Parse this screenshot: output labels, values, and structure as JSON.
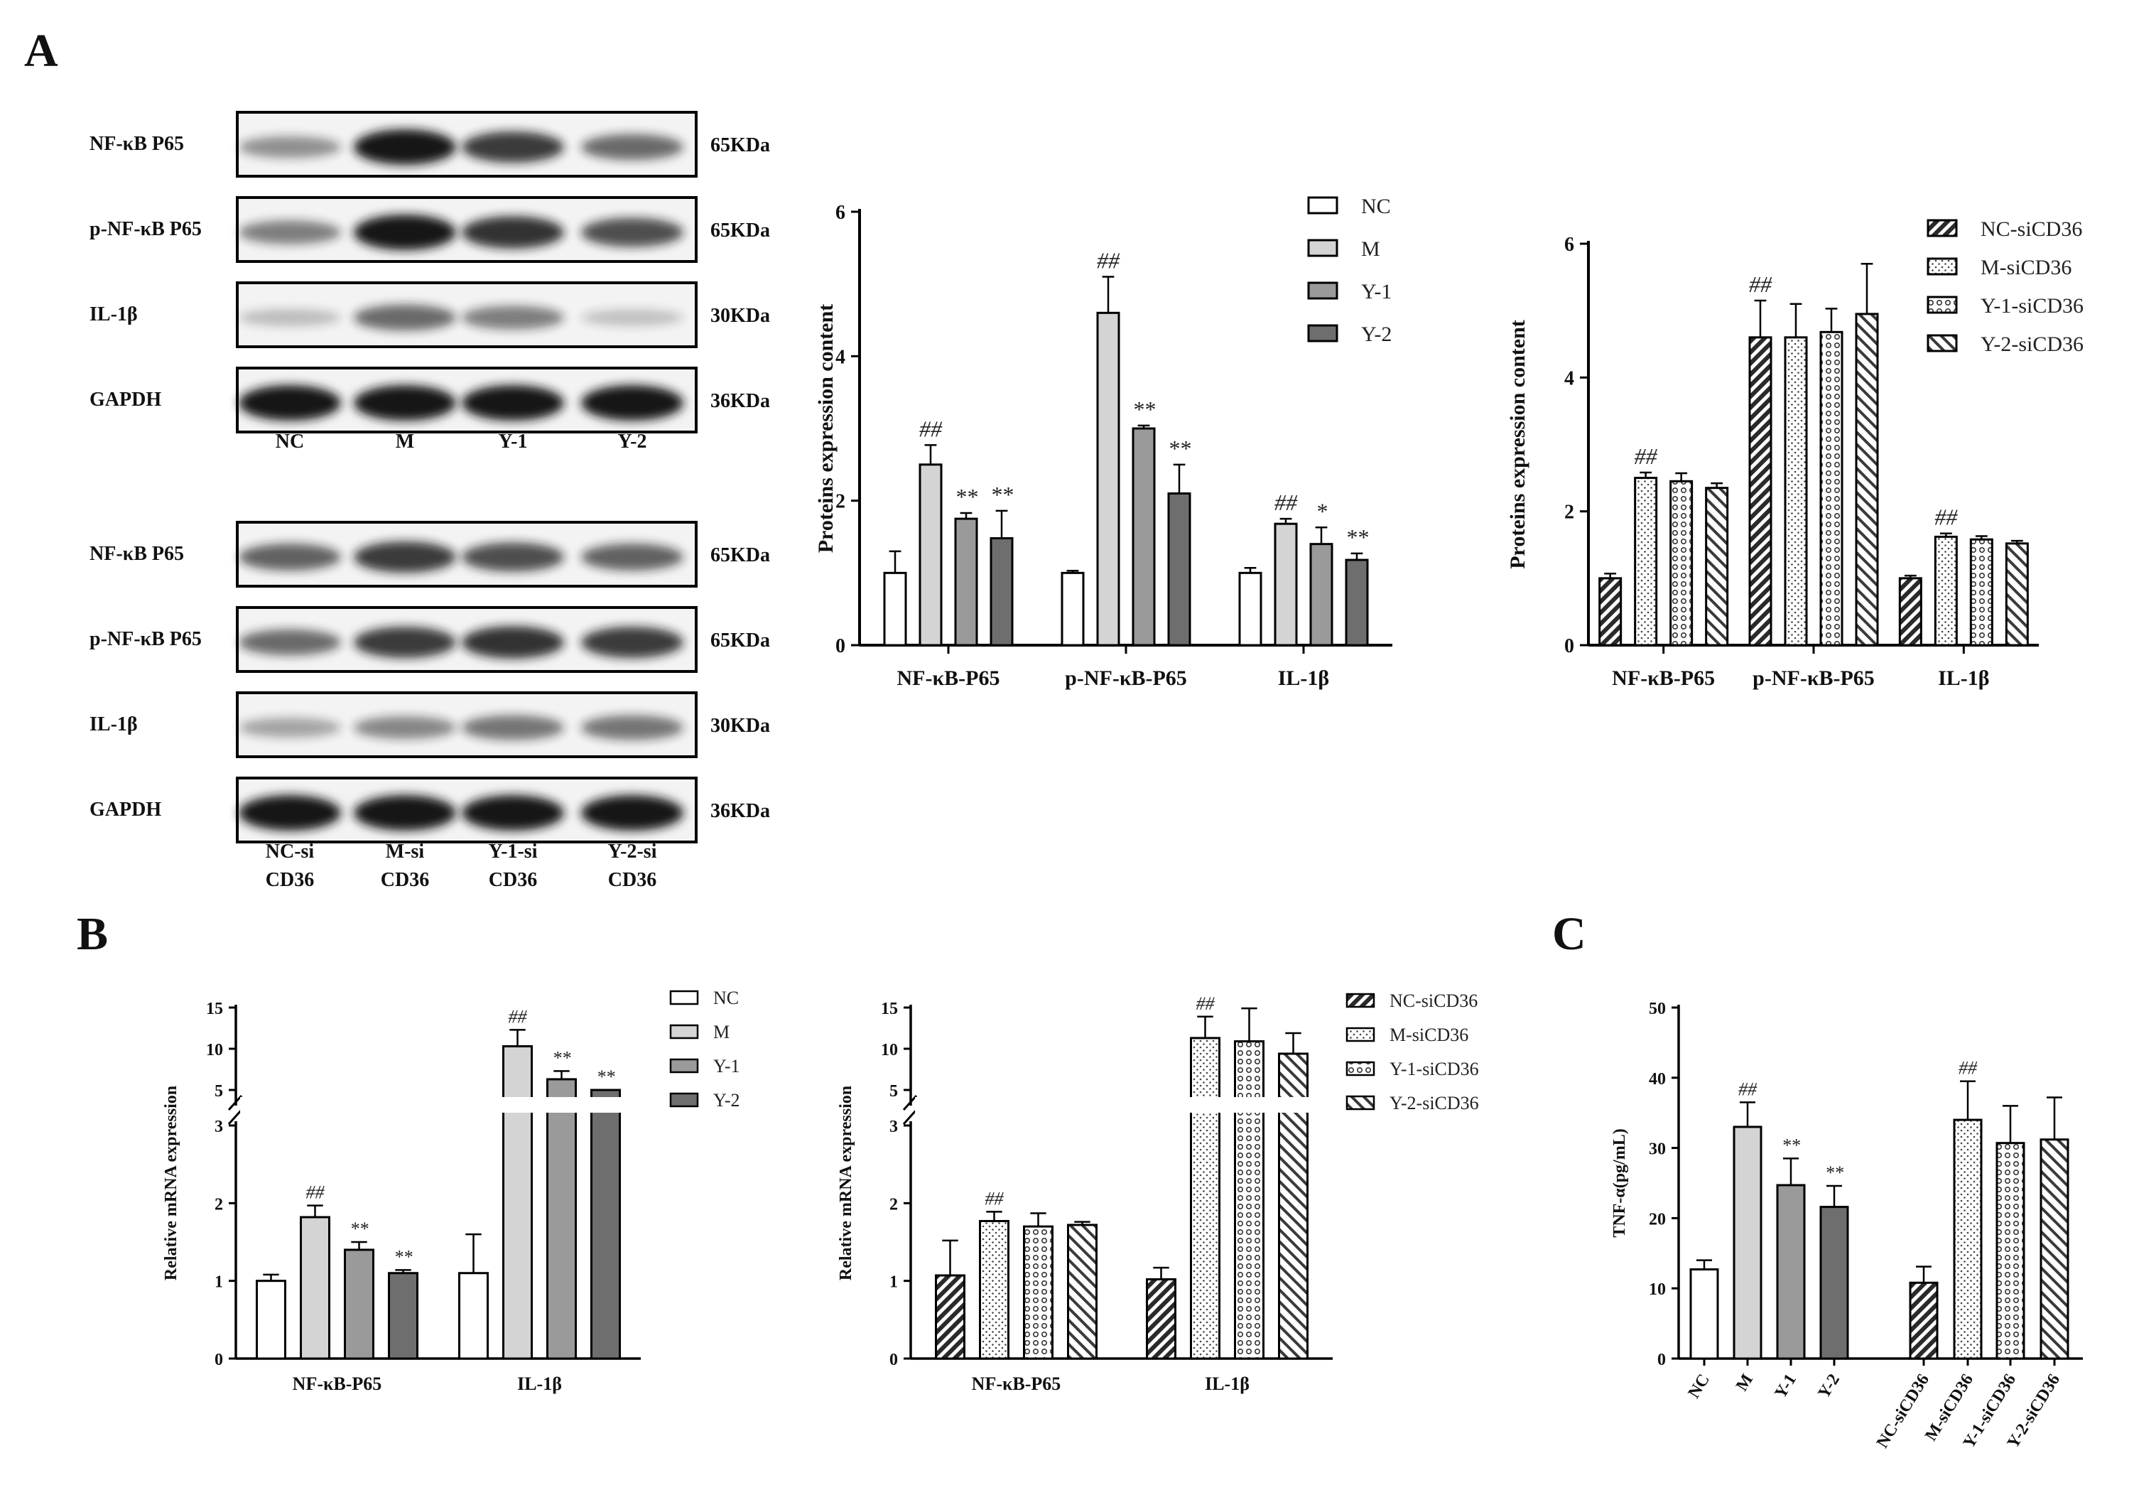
{
  "panel_labels": {
    "A": "A",
    "B": "B",
    "C": "C"
  },
  "blots": [
    {
      "rows": [
        {
          "name": "NF-κB P65",
          "kda": "65KDa",
          "intensity": [
            0.35,
            1.0,
            0.8,
            0.55
          ]
        },
        {
          "name": "p-NF-κB P65",
          "kda": "65KDa",
          "intensity": [
            0.45,
            1.0,
            0.85,
            0.7
          ]
        },
        {
          "name": "IL-1β",
          "kda": "30KDa",
          "intensity": [
            0.12,
            0.55,
            0.45,
            0.1
          ]
        },
        {
          "name": "GAPDH",
          "kda": "36KDa",
          "intensity": [
            1.0,
            1.0,
            1.0,
            1.0
          ]
        }
      ],
      "lanes": [
        [
          "NC"
        ],
        [
          "M"
        ],
        [
          "Y-1"
        ],
        [
          "Y-2"
        ]
      ]
    },
    {
      "rows": [
        {
          "name": "NF-κB P65",
          "kda": "65KDa",
          "intensity": [
            0.6,
            0.8,
            0.7,
            0.6
          ]
        },
        {
          "name": "p-NF-κB P65",
          "kda": "65KDa",
          "intensity": [
            0.55,
            0.8,
            0.85,
            0.8
          ]
        },
        {
          "name": "IL-1β",
          "kda": "30KDa",
          "intensity": [
            0.25,
            0.4,
            0.5,
            0.5
          ]
        },
        {
          "name": "GAPDH",
          "kda": "36KDa",
          "intensity": [
            1.0,
            1.0,
            1.0,
            1.0
          ]
        }
      ],
      "lanes": [
        [
          "NC-si",
          "CD36"
        ],
        [
          "M-si",
          "CD36"
        ],
        [
          "Y-1-si",
          "CD36"
        ],
        [
          "Y-2-si",
          "CD36"
        ]
      ]
    }
  ],
  "colors": {
    "NC": "#ffffff",
    "M": "#d4d4d4",
    "Y1": "#9a9a9a",
    "Y2": "#6e6e6e",
    "axis": "#000000",
    "band": "#161616"
  },
  "chart_data": [
    {
      "type": "bar",
      "categories": [
        "NF-κB-P65",
        "p-NF-κB-P65",
        "IL-1β"
      ],
      "ylabel": "Proteins expression content",
      "ylim": [
        0,
        6
      ],
      "yticks": [
        0,
        2,
        4,
        6
      ],
      "fill": "solid",
      "series": [
        {
          "name": "NC",
          "values": [
            1.0,
            1.0,
            1.0
          ],
          "errors": [
            0.3,
            0.03,
            0.07
          ],
          "annotations": [
            "",
            "",
            ""
          ]
        },
        {
          "name": "M",
          "values": [
            2.5,
            4.6,
            1.68
          ],
          "errors": [
            0.27,
            0.5,
            0.07
          ],
          "annotations": [
            "##",
            "##",
            "##"
          ]
        },
        {
          "name": "Y-1",
          "values": [
            1.75,
            3.0,
            1.4
          ],
          "errors": [
            0.08,
            0.04,
            0.23
          ],
          "annotations": [
            "**",
            "**",
            "*"
          ]
        },
        {
          "name": "Y-2",
          "values": [
            1.48,
            2.1,
            1.18
          ],
          "errors": [
            0.38,
            0.4,
            0.09
          ],
          "annotations": [
            "**",
            "**",
            "**"
          ]
        }
      ]
    },
    {
      "type": "bar",
      "categories": [
        "NF-κB-P65",
        "p-NF-κB-P65",
        "IL-1β"
      ],
      "ylabel": "Proteins expression content",
      "ylim": [
        0,
        6
      ],
      "yticks": [
        0,
        2,
        4,
        6
      ],
      "fill": "pattern",
      "series": [
        {
          "name": "NC-siCD36",
          "values": [
            1.0,
            4.6,
            1.0
          ],
          "errors": [
            0.07,
            0.55,
            0.04
          ],
          "annotations": [
            "",
            "##",
            ""
          ]
        },
        {
          "name": "M-siCD36",
          "values": [
            2.5,
            4.6,
            1.62
          ],
          "errors": [
            0.08,
            0.5,
            0.05
          ],
          "annotations": [
            "##",
            "",
            "##"
          ]
        },
        {
          "name": "Y-1-siCD36",
          "values": [
            2.45,
            4.68,
            1.58
          ],
          "errors": [
            0.12,
            0.35,
            0.05
          ],
          "annotations": [
            "",
            "",
            ""
          ]
        },
        {
          "name": "Y-2-siCD36",
          "values": [
            2.35,
            4.95,
            1.52
          ],
          "errors": [
            0.07,
            0.75,
            0.04
          ],
          "annotations": [
            "",
            "",
            ""
          ]
        }
      ]
    },
    {
      "type": "bar",
      "categories": [
        "NF-κB-P65",
        "IL-1β"
      ],
      "ylabel": "Relative mRNA expression",
      "axis_break": 3,
      "ylim_lower": [
        0,
        3
      ],
      "ylim_upper": [
        5,
        15
      ],
      "yticks_lower": [
        0,
        1,
        2,
        3
      ],
      "yticks_upper": [
        5,
        10,
        15
      ],
      "fill": "solid",
      "series": [
        {
          "name": "NC",
          "values": [
            1.0,
            1.1
          ],
          "errors": [
            0.08,
            0.5
          ],
          "annotations": [
            "",
            ""
          ]
        },
        {
          "name": "M",
          "values": [
            1.82,
            10.3
          ],
          "errors": [
            0.15,
            2.0
          ],
          "annotations": [
            "##",
            "##"
          ]
        },
        {
          "name": "Y-1",
          "values": [
            1.4,
            6.3
          ],
          "errors": [
            0.1,
            1.0
          ],
          "annotations": [
            "**",
            "**"
          ]
        },
        {
          "name": "Y-2",
          "values": [
            1.1,
            4.0
          ],
          "errors": [
            0.04,
            1.0
          ],
          "annotations": [
            "**",
            "**"
          ]
        }
      ]
    },
    {
      "type": "bar",
      "categories": [
        "NF-κB-P65",
        "IL-1β"
      ],
      "ylabel": "Relative mRNA expression",
      "axis_break": 3,
      "ylim_lower": [
        0,
        3
      ],
      "ylim_upper": [
        5,
        15
      ],
      "yticks_lower": [
        0,
        1,
        2,
        3
      ],
      "yticks_upper": [
        5,
        10,
        15
      ],
      "fill": "pattern",
      "series": [
        {
          "name": "NC-siCD36",
          "values": [
            1.07,
            1.02
          ],
          "errors": [
            0.45,
            0.15
          ],
          "annotations": [
            "",
            ""
          ]
        },
        {
          "name": "M-siCD36",
          "values": [
            1.77,
            11.3
          ],
          "errors": [
            0.12,
            2.6
          ],
          "annotations": [
            "##",
            "##"
          ]
        },
        {
          "name": "Y-1-siCD36",
          "values": [
            1.7,
            10.9
          ],
          "errors": [
            0.17,
            4.0
          ],
          "annotations": [
            "",
            ""
          ]
        },
        {
          "name": "Y-2-siCD36",
          "values": [
            1.72,
            9.4
          ],
          "errors": [
            0.04,
            2.5
          ],
          "annotations": [
            "",
            ""
          ]
        }
      ]
    },
    {
      "type": "bar",
      "categories": [
        "NC",
        "M",
        "Y-1",
        "Y-2",
        "NC-siCD36",
        "M-siCD36",
        "Y-1-siCD36",
        "Y-2-siCD36"
      ],
      "ylabel": "TNF-α(pg/mL)",
      "ylim": [
        0,
        50
      ],
      "yticks": [
        0,
        10,
        20,
        30,
        40,
        50
      ],
      "values": [
        12.7,
        33.0,
        24.7,
        21.6,
        10.8,
        34.0,
        30.7,
        31.2
      ],
      "errors": [
        1.3,
        3.5,
        3.8,
        3.0,
        2.3,
        5.5,
        5.3,
        6.0
      ],
      "annotations": [
        "",
        "##",
        "**",
        "**",
        "",
        "##",
        "",
        ""
      ],
      "bar_styles": [
        "NC",
        "M",
        "Y1",
        "Y2",
        "pat0",
        "pat1",
        "pat2",
        "pat3"
      ]
    }
  ]
}
